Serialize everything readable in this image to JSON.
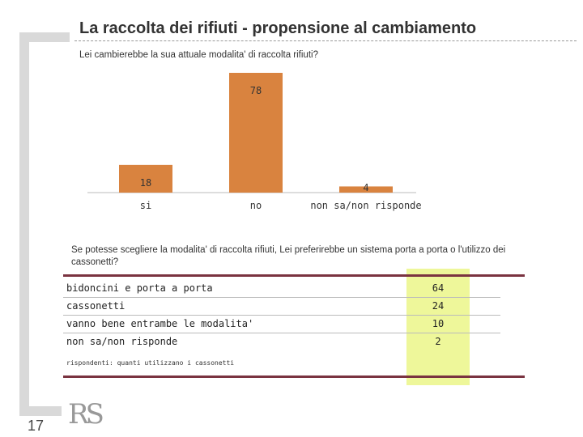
{
  "slide": {
    "title": "La raccolta dei rifiuti - propensione al cambiamento",
    "question1": "Lei cambierebbe la sua attuale modalita' di raccolta rifiuti?",
    "question2": "Se potesse scegliere la modalita' di raccolta rifiuti, Lei preferirebbe un sistema porta a porta o l'utilizzo dei cassonetti?",
    "note": "rispondenti: quanti utilizzano i cassonetti",
    "logo": "RS",
    "page_number": "17"
  },
  "chart_data": [
    {
      "type": "bar",
      "categories": [
        "si",
        "no",
        "non sa/non risponde"
      ],
      "values": [
        18,
        78,
        4
      ],
      "ylim": [
        0,
        78
      ],
      "title": "",
      "xlabel": "",
      "ylabel": "",
      "grid": false,
      "bar_color": "#d9833f"
    },
    {
      "type": "table",
      "rows": [
        {
          "label": "bidoncini e porta a porta",
          "value": "64"
        },
        {
          "label": "cassonetti",
          "value": "24"
        },
        {
          "label": "vanno bene entrambe le modalita'",
          "value": "10"
        },
        {
          "label": "non sa/non risponde",
          "value": "2"
        }
      ],
      "highlight_color": "#eef79a"
    }
  ]
}
